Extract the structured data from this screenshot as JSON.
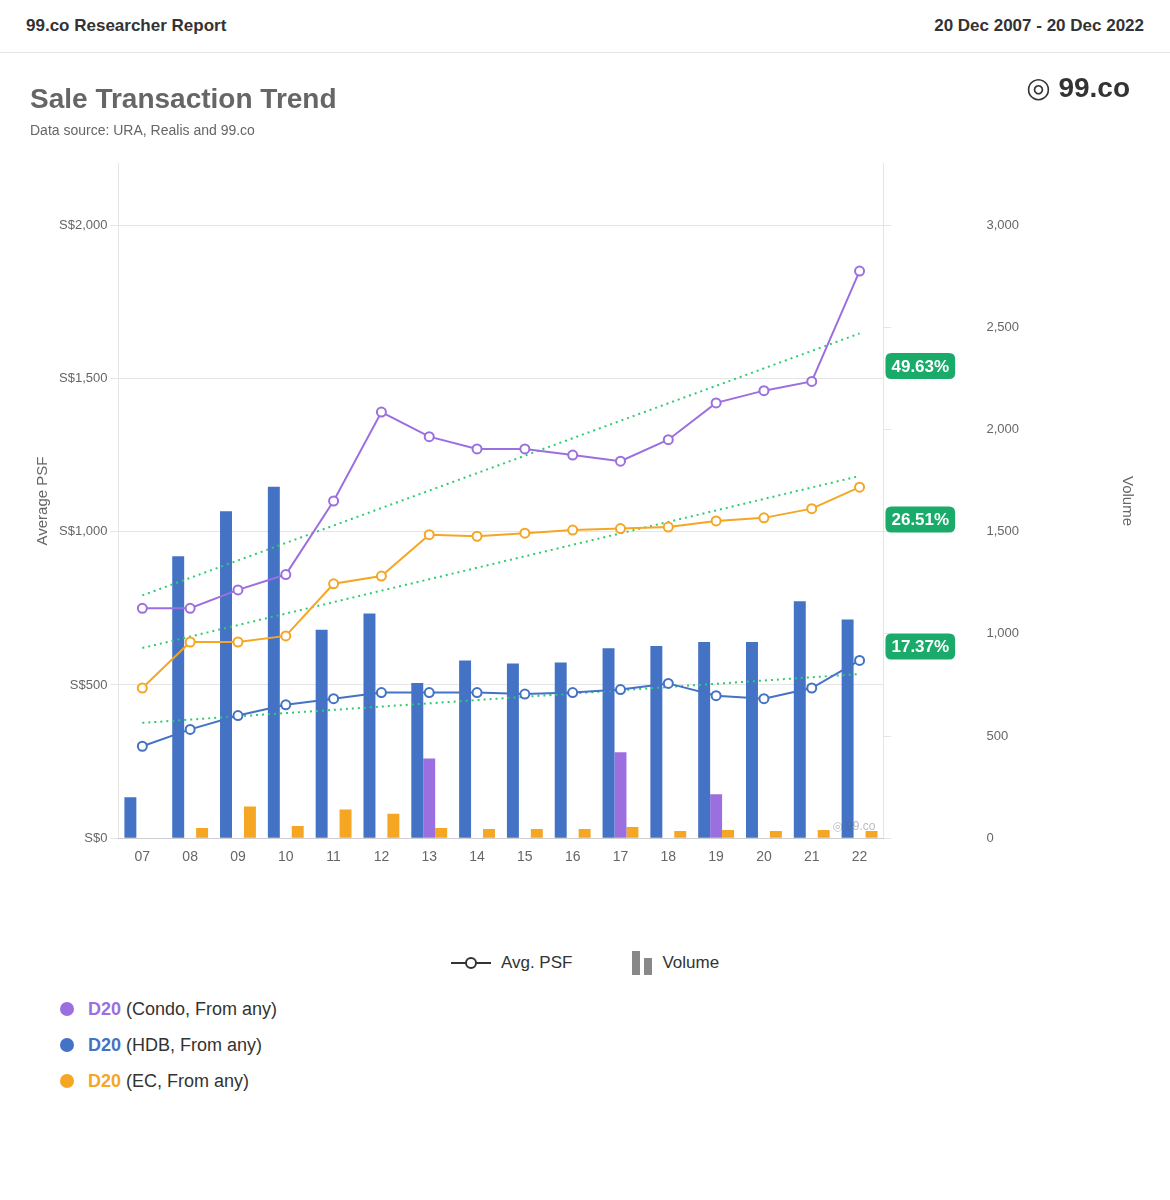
{
  "chart_data": {
    "type": "bar",
    "title": "Sale Transaction Trend",
    "subtitle": "Data source: URA, Realis and 99.co",
    "header_left": "99.co Researcher Report",
    "header_right": "20 Dec 2007 - 20 Dec 2022",
    "logo": "◎ 99.co",
    "watermark": "◎ 99.co",
    "categories": [
      "07",
      "08",
      "09",
      "10",
      "11",
      "12",
      "13",
      "14",
      "15",
      "16",
      "17",
      "18",
      "19",
      "20",
      "21",
      "22"
    ],
    "y_label": "Average PSF",
    "y2_label": "Volume",
    "ylim": [
      0,
      2200
    ],
    "yticks": [
      {
        "value": 0,
        "label": "S$0"
      },
      {
        "value": 500,
        "label": "S$500"
      },
      {
        "value": 1000,
        "label": "S$1,000"
      },
      {
        "value": 1500,
        "label": "S$1,500"
      },
      {
        "value": 2000,
        "label": "S$2,000"
      }
    ],
    "y2lim": [
      0,
      3300
    ],
    "y2ticks": [
      0,
      500,
      {
        "value": 1000,
        "label": "1,000"
      },
      {
        "value": 1500,
        "label": "1,500"
      },
      {
        "value": 2000,
        "label": "2,000"
      },
      {
        "value": 2500,
        "label": "2,500"
      },
      {
        "value": 3000,
        "label": "3,000"
      }
    ],
    "grid": true,
    "legend": "bottom",
    "legend_kinds": [
      {
        "type": "line",
        "label": "Avg. PSF"
      },
      {
        "type": "bar",
        "label": "Volume"
      }
    ],
    "series": [
      {
        "name": "D20 (HDB, From any)",
        "type": "bar",
        "axis": "y2",
        "color": "#4472c4",
        "values": [
          200,
          1380,
          1600,
          1720,
          1020,
          1100,
          760,
          870,
          855,
          860,
          930,
          940,
          960,
          960,
          1160,
          1070
        ]
      },
      {
        "name": "D20 (Condo, From any)",
        "type": "bar",
        "axis": "y2",
        "color": "#9b6fe0",
        "values": [
          0,
          0,
          0,
          0,
          0,
          0,
          390,
          0,
          0,
          0,
          420,
          0,
          215,
          0,
          0,
          0
        ]
      },
      {
        "name": "D20 (EC, From any)",
        "type": "bar",
        "axis": "y2",
        "color": "#f5a623",
        "values": [
          0,
          50,
          155,
          60,
          140,
          120,
          50,
          45,
          45,
          45,
          55,
          35,
          40,
          35,
          40,
          35
        ]
      },
      {
        "name": "D20 (Condo, From any)",
        "type": "line",
        "color": "#9b6fe0",
        "marker": "circle",
        "values": [
          750,
          750,
          810,
          860,
          1100,
          1390,
          1310,
          1270,
          1270,
          1250,
          1230,
          1300,
          1420,
          1460,
          1490,
          1850
        ]
      },
      {
        "name": "D20 (HDB, From any)",
        "type": "line",
        "color": "#4472c4",
        "marker": "circle",
        "values": [
          300,
          355,
          400,
          435,
          455,
          475,
          475,
          475,
          470,
          475,
          485,
          505,
          465,
          455,
          490,
          580
        ]
      },
      {
        "name": "D20 (EC, From any)",
        "type": "line",
        "color": "#f5a623",
        "marker": "circle",
        "values": [
          490,
          640,
          640,
          660,
          830,
          855,
          990,
          985,
          995,
          1005,
          1010,
          1015,
          1035,
          1045,
          1075,
          1145
        ]
      },
      {
        "type": "line",
        "color": "#2ecc71",
        "line_style": "dotted",
        "values": [
          792.2059,
          849.1618,
          906.1176,
          963.0735,
          1020.0294,
          1076.9853,
          1133.9412,
          1190.8971,
          1247.8529,
          1304.8088,
          1361.7647,
          1418.7206,
          1475.6765,
          1532.6324,
          1589.5882,
          1646.5441
        ]
      },
      {
        "type": "line",
        "color": "#2ecc71",
        "line_style": "dotted",
        "values": [
          620.4044,
          657.8088,
          695.2132,
          732.6176,
          770.0221,
          807.4265,
          844.8309,
          882.2353,
          919.6397,
          957.0441,
          994.4485,
          1031.8529,
          1069.2574,
          1106.6618,
          1144.0662,
          1181.4706
        ]
      },
      {
        "type": "line",
        "color": "#2ecc71",
        "line_style": "dotted",
        "values": [
          376.25,
          386.875,
          397.5,
          408.125,
          418.75,
          429.375,
          440,
          450.625,
          461.25,
          471.875,
          482.5,
          493.125,
          503.75,
          514.375,
          525,
          535.625
        ]
      }
    ],
    "annotations": [
      {
        "text": "49.63%",
        "y": 1540,
        "color": "#1aaa6a"
      },
      {
        "text": "26.51%",
        "y": 1040,
        "color": "#1aaa6a"
      },
      {
        "text": "17.37%",
        "y": 625,
        "color": "#1aaa6a"
      }
    ]
  }
}
